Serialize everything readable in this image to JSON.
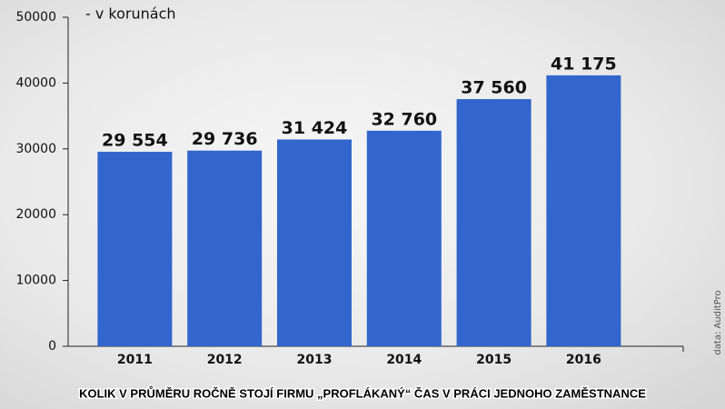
{
  "chart_data": {
    "type": "bar",
    "title": "KOLIK V PRŮMĚRU ROČNĚ STOJÍ FIRMU „PROFLÁKANÝ“ ČAS V PRÁCI JEDNOHO ZAMĚSTNANCE",
    "subtitle": "- v korunách",
    "source": "data: AuditPro",
    "categories": [
      "2011",
      "2012",
      "2013",
      "2014",
      "2015",
      "2016"
    ],
    "values": [
      29554,
      29736,
      31424,
      32760,
      37560,
      41175
    ],
    "value_labels": [
      "29 554",
      "29 736",
      "31 424",
      "32 760",
      "37 560",
      "41 175"
    ],
    "color": "#3366cc",
    "ylim": [
      0,
      50000
    ],
    "yticks": [
      0,
      10000,
      20000,
      30000,
      40000,
      50000
    ],
    "grid": false
  }
}
